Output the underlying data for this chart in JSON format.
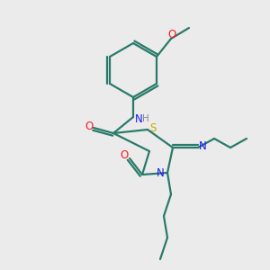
{
  "background_color": "#ebebeb",
  "bond_color": "#2a7a6a",
  "atom_colors": {
    "N": "#1a1aff",
    "O": "#ff1a1a",
    "S": "#ccaa00",
    "H": "#888888",
    "C": "#2a7a6a"
  },
  "figsize": [
    3.0,
    3.0
  ],
  "dpi": 100,
  "lw": 1.6,
  "fs": 8.5
}
